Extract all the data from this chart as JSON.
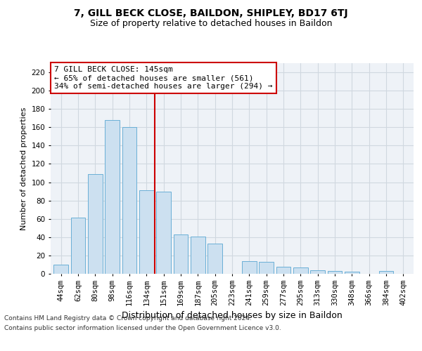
{
  "title": "7, GILL BECK CLOSE, BAILDON, SHIPLEY, BD17 6TJ",
  "subtitle": "Size of property relative to detached houses in Baildon",
  "xlabel": "Distribution of detached houses by size in Baildon",
  "ylabel": "Number of detached properties",
  "footer_line1": "Contains HM Land Registry data © Crown copyright and database right 2024.",
  "footer_line2": "Contains public sector information licensed under the Open Government Licence v3.0.",
  "categories": [
    "44sqm",
    "62sqm",
    "80sqm",
    "98sqm",
    "116sqm",
    "134sqm",
    "151sqm",
    "169sqm",
    "187sqm",
    "205sqm",
    "223sqm",
    "241sqm",
    "259sqm",
    "277sqm",
    "295sqm",
    "313sqm",
    "330sqm",
    "348sqm",
    "366sqm",
    "384sqm",
    "402sqm"
  ],
  "values": [
    10,
    61,
    109,
    168,
    160,
    91,
    90,
    43,
    41,
    33,
    0,
    14,
    13,
    8,
    7,
    4,
    3,
    2,
    0,
    3,
    0
  ],
  "bar_color": "#cce0f0",
  "bar_edge_color": "#6aafd6",
  "vline_x": 5.5,
  "vline_color": "#cc0000",
  "annotation_text": "7 GILL BECK CLOSE: 145sqm\n← 65% of detached houses are smaller (561)\n34% of semi-detached houses are larger (294) →",
  "annotation_box_facecolor": "#ffffff",
  "annotation_box_edgecolor": "#cc0000",
  "ylim": [
    0,
    230
  ],
  "yticks": [
    0,
    20,
    40,
    60,
    80,
    100,
    120,
    140,
    160,
    180,
    200,
    220
  ],
  "grid_color": "#d0d8e0",
  "background_color": "#eef2f7",
  "title_fontsize": 10,
  "subtitle_fontsize": 9,
  "ylabel_fontsize": 8,
  "xlabel_fontsize": 9,
  "annotation_fontsize": 8,
  "tick_fontsize": 7.5,
  "footer_fontsize": 6.5
}
